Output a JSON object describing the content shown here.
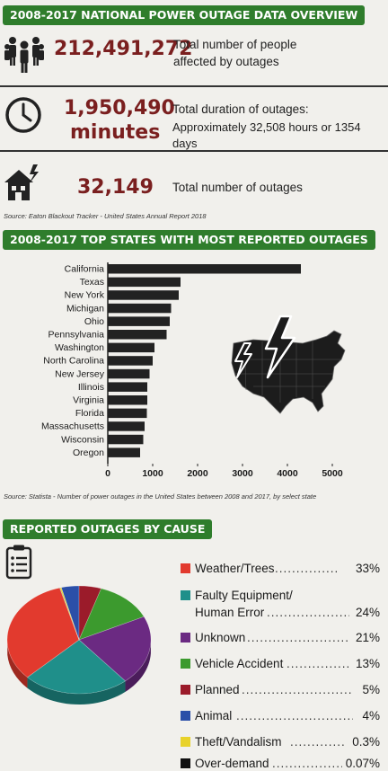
{
  "overview": {
    "title": "2008-2017 NATIONAL POWER OUTAGE DATA OVERVIEW",
    "people": {
      "value": "212,491,272",
      "line1": "Total number of people",
      "line2": "affected by outages"
    },
    "duration": {
      "value_line1": "1,950,490",
      "value_line2": "minutes",
      "line1": "Total duration of outages:",
      "line2": "Approximately 32,508 hours or 1354 days"
    },
    "count": {
      "value": "32,149",
      "line1": "Total number of outages"
    },
    "source": "Source: Eaton Blackout Tracker - United States Annual Report 2018",
    "icons": {
      "people": "people-group-icon",
      "duration": "clock-icon",
      "count": "house-lightning-icon"
    }
  },
  "states_section": {
    "title": "2008-2017 TOP STATES WITH MOST REPORTED OUTAGES",
    "source": "Source: Statista - Number of power outages in the United States between 2008 and 2017, by select state",
    "map_icon": "usa-map-lightning-icon"
  },
  "cause_section": {
    "title": "REPORTED OUTAGES BY CAUSE",
    "icon": "clipboard-list-icon"
  },
  "chart_data": [
    {
      "type": "bar",
      "orientation": "horizontal",
      "categories": [
        "California",
        "Texas",
        "New York",
        "Michigan",
        "Ohio",
        "Pennsylvania",
        "Washington",
        "North Carolina",
        "New Jersey",
        "Illinois",
        "Virginia",
        "Florida",
        "Massachusetts",
        "Wisconsin",
        "Oregon"
      ],
      "values": [
        4300,
        1620,
        1580,
        1410,
        1380,
        1310,
        1040,
        1000,
        930,
        880,
        880,
        870,
        820,
        790,
        720
      ],
      "xlim": [
        0,
        5000
      ],
      "xticks": [
        "0",
        "1000",
        "2000",
        "3000",
        "4000",
        "5000"
      ],
      "bar_color": "#222222",
      "grid": false
    },
    {
      "type": "pie",
      "slices": [
        {
          "label": "Weather/Trees",
          "dots": "...............",
          "value_text": "33%",
          "value": 33,
          "color": "#e23a2e"
        },
        {
          "label_line1": "Faulty Equipment/",
          "label": "Human Error",
          "dots": "..........................",
          "value_text": "24%",
          "value": 24,
          "color": "#1f8f8a"
        },
        {
          "label": "Unknown",
          "dots": "...........................",
          "value_text": "21%",
          "value": 21,
          "color": "#6b2a82"
        },
        {
          "label": "Vehicle Accident",
          "dots": "...................",
          "value_text": "13%",
          "value": 13,
          "color": "#3c9a2e"
        },
        {
          "label": "Planned",
          "dots": "...........................",
          "value_text": "5%",
          "value": 5,
          "color": "#9b1b2a"
        },
        {
          "label": "Animal",
          "dots": ".............................",
          "value_text": "4%",
          "value": 4,
          "color": "#2b4fa8"
        },
        {
          "label": "Theft/Vandalism",
          "dots": "..................",
          "value_text": "0.3%",
          "value": 0.3,
          "color": "#e8d22a"
        },
        {
          "label": "Over-demand",
          "dots": "......................",
          "value_text": "0.07%",
          "value": 0.07,
          "color": "#111111"
        }
      ]
    }
  ]
}
